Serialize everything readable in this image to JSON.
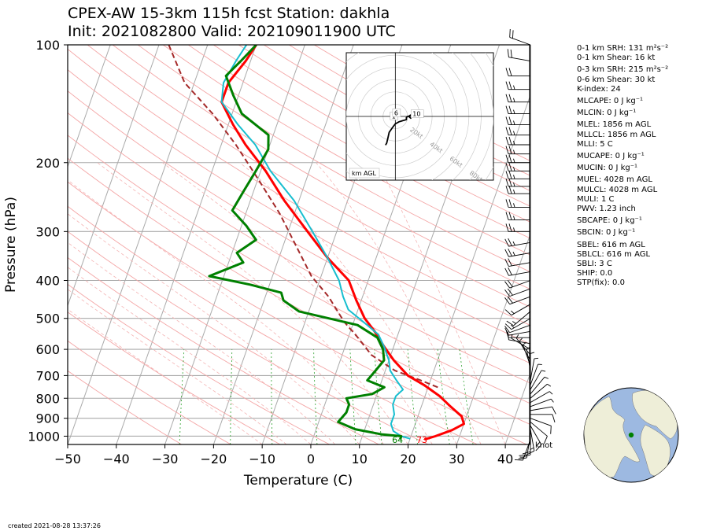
{
  "figure": {
    "title_line1": "CPEX-AW 15-3km  115h fcst  Station: dakhla",
    "title_line2": "Init: 2021082800  Valid: 2021090119​00 UTC",
    "footer": "created 2021-08-28 13:37:26",
    "wind_unit": "knot",
    "hodograph_label": "km AGL",
    "hodograph_height_markers": [
      "1",
      "6",
      "10"
    ],
    "hodograph_ring_labels": [
      "20kt",
      "40kt",
      "60kt",
      "80kt"
    ],
    "surface_dewpoint_label": "64",
    "surface_temperature_label": "73"
  },
  "stats": [
    {
      "label": "0-1 km SRH: 131 m²s⁻²"
    },
    {
      "label": "0-1 km Shear: 16 kt"
    },
    {
      "label": "0-3 km SRH: 215 m²s⁻²"
    },
    {
      "label": "0-6 km Shear: 30 kt"
    },
    {
      "label": "K-index: 24"
    },
    {
      "label": "MLCAPE: 0 J kg⁻¹"
    },
    {
      "label": "MLCIN: 0 J kg⁻¹"
    },
    {
      "label": "MLEL: 1856 m AGL"
    },
    {
      "label": "MLLCL: 1856 m AGL"
    },
    {
      "label": "MLLI: 5 C"
    },
    {
      "label": "MUCAPE: 0 J kg⁻¹"
    },
    {
      "label": "MUCIN: 0 J kg⁻¹"
    },
    {
      "label": "MUEL: 4028 m AGL"
    },
    {
      "label": "MULCL: 4028 m AGL"
    },
    {
      "label": "MULI: 1 C"
    },
    {
      "label": "PWV: 1.23 inch"
    },
    {
      "label": "SBCAPE: 0 J kg⁻¹"
    },
    {
      "label": "SBCIN: 0 J kg⁻¹"
    },
    {
      "label": "SBEL: 616 m AGL"
    },
    {
      "label": "SBLCL: 616 m AGL"
    },
    {
      "label": "SBLI: 3 C"
    },
    {
      "label": "SHIP: 0.0"
    },
    {
      "label": "STP(fix): 0.0"
    }
  ],
  "colors": {
    "temperature": "#ff0000",
    "dewpoint": "#008000",
    "wetbulb": "#17becf",
    "parcel": "#a52a2a",
    "dry_adiabat": "#f4a6a6",
    "isotherm": "#aaaaaa",
    "mixing_ratio": "#2ca02c",
    "ocean": "#9db9e1",
    "land": "#eeeed8"
  },
  "chart_data": {
    "type": "line",
    "title": "CPEX-AW 15-3km  115h fcst  Station: dakhla",
    "xlabel": "Temperature (C)",
    "ylabel": "Pressure (hPa)",
    "xlim": [
      -50,
      45
    ],
    "ylim": [
      1050,
      100
    ],
    "y_scale": "log",
    "grid": true,
    "x_ticks": [
      -50,
      -40,
      -30,
      -20,
      -10,
      0,
      10,
      20,
      30,
      40
    ],
    "y_ticks": [
      100,
      200,
      300,
      400,
      500,
      600,
      700,
      800,
      900,
      1000
    ],
    "series": [
      {
        "key": "temperature",
        "points": [
          [
            23,
            1020
          ],
          [
            25,
            1000
          ],
          [
            28,
            965
          ],
          [
            30,
            930
          ],
          [
            29,
            890
          ],
          [
            26,
            840
          ],
          [
            23,
            790
          ],
          [
            19,
            740
          ],
          [
            15,
            700
          ],
          [
            11,
            640
          ],
          [
            8,
            590
          ],
          [
            5,
            540
          ],
          [
            2,
            500
          ],
          [
            -1,
            450
          ],
          [
            -4,
            400
          ],
          [
            -10,
            350
          ],
          [
            -16,
            300
          ],
          [
            -23,
            250
          ],
          [
            -29,
            210
          ],
          [
            -35,
            180
          ],
          [
            -39,
            160
          ],
          [
            -43,
            140
          ],
          [
            -43,
            125
          ],
          [
            -41,
            110
          ],
          [
            -40,
            100
          ]
        ]
      },
      {
        "key": "wetbulb",
        "points": [
          [
            20,
            1015
          ],
          [
            18,
            1000
          ],
          [
            16,
            970
          ],
          [
            15,
            930
          ],
          [
            15,
            880
          ],
          [
            14,
            830
          ],
          [
            14,
            790
          ],
          [
            15,
            760
          ],
          [
            13,
            720
          ],
          [
            11,
            680
          ],
          [
            10,
            640
          ],
          [
            8,
            590
          ],
          [
            6,
            550
          ],
          [
            3,
            520
          ],
          [
            -2,
            475
          ],
          [
            -4,
            440
          ],
          [
            -6,
            400
          ],
          [
            -10,
            350
          ],
          [
            -15,
            300
          ],
          [
            -21,
            250
          ],
          [
            -28,
            210
          ],
          [
            -33,
            180
          ],
          [
            -38,
            160
          ],
          [
            -43,
            140
          ],
          [
            -44,
            125
          ],
          [
            -43,
            110
          ],
          [
            -42,
            100
          ]
        ]
      },
      {
        "key": "dewpoint",
        "points": [
          [
            18,
            1020
          ],
          [
            18,
            1000
          ],
          [
            14,
            990
          ],
          [
            8,
            960
          ],
          [
            4,
            920
          ],
          [
            5,
            870
          ],
          [
            5,
            830
          ],
          [
            4,
            800
          ],
          [
            9,
            780
          ],
          [
            11,
            750
          ],
          [
            7,
            720
          ],
          [
            8,
            680
          ],
          [
            9,
            640
          ],
          [
            8,
            600
          ],
          [
            6,
            560
          ],
          [
            1,
            520
          ],
          [
            -12,
            480
          ],
          [
            -16,
            450
          ],
          [
            -17,
            430
          ],
          [
            -24,
            410
          ],
          [
            -33,
            390
          ],
          [
            -27,
            360
          ],
          [
            -29,
            340
          ],
          [
            -26,
            315
          ],
          [
            -29,
            290
          ],
          [
            -33,
            265
          ],
          [
            -32,
            235
          ],
          [
            -31,
            210
          ],
          [
            -30,
            185
          ],
          [
            -31,
            170
          ],
          [
            -38,
            150
          ],
          [
            -41,
            135
          ],
          [
            -44,
            120
          ],
          [
            -42,
            110
          ],
          [
            -40,
            100
          ]
        ]
      },
      {
        "key": "parcel",
        "points": [
          [
            22,
            750
          ],
          [
            18,
            720
          ],
          [
            12,
            680
          ],
          [
            6,
            620
          ],
          [
            2,
            560
          ],
          [
            -2,
            510
          ],
          [
            -7,
            440
          ],
          [
            -12,
            390
          ],
          [
            -17,
            330
          ],
          [
            -23,
            270
          ],
          [
            -30,
            220
          ],
          [
            -37,
            180
          ],
          [
            -44,
            150
          ],
          [
            -52,
            125
          ],
          [
            -58,
            100
          ]
        ]
      }
    ],
    "surface_labels": [
      {
        "text": "64",
        "x": 18
      },
      {
        "text": "73",
        "x": 23
      }
    ],
    "wind_barbs_pressure": [
      1020,
      1000,
      980,
      960,
      940,
      920,
      900,
      880,
      860,
      840,
      820,
      800,
      780,
      760,
      740,
      720,
      700,
      680,
      660,
      640,
      620,
      600,
      580,
      560,
      540,
      520,
      500,
      480,
      460,
      440,
      420,
      400,
      380,
      360,
      340,
      320,
      300,
      280,
      260,
      240,
      230,
      220,
      210,
      200,
      190,
      180,
      170,
      160,
      150,
      140,
      130,
      120,
      110,
      100
    ],
    "wind_barbs_direction": [
      200,
      190,
      180,
      170,
      150,
      130,
      110,
      90,
      80,
      70,
      60,
      50,
      40,
      30,
      20,
      10,
      360,
      350,
      340,
      330,
      320,
      300,
      280,
      270,
      260,
      250,
      240,
      230,
      240,
      250,
      250,
      250,
      260,
      260,
      260,
      260,
      270,
      270,
      270,
      270,
      270,
      270,
      270,
      270,
      270,
      270,
      270,
      270,
      270,
      270,
      270,
      270,
      280,
      290
    ],
    "wind_barbs_speed": [
      15,
      20,
      20,
      15,
      15,
      10,
      10,
      10,
      10,
      5,
      5,
      5,
      5,
      5,
      5,
      5,
      5,
      5,
      5,
      5,
      5,
      5,
      10,
      10,
      10,
      10,
      15,
      15,
      15,
      20,
      20,
      20,
      20,
      20,
      25,
      25,
      25,
      25,
      25,
      25,
      25,
      25,
      25,
      25,
      25,
      25,
      25,
      25,
      25,
      25,
      25,
      20,
      20,
      20
    ],
    "hodograph": {
      "xlim_kt": [
        -40,
        80
      ],
      "ylim_kt": [
        -60,
        60
      ],
      "rings_kt": [
        10,
        20,
        30,
        40,
        50,
        60,
        70,
        80,
        90,
        100
      ],
      "u": [
        -8,
        -7,
        -6,
        -5,
        -2,
        0,
        3,
        6,
        9,
        9,
        10,
        13,
        14,
        15,
        14,
        12,
        11,
        12,
        13
      ],
      "v": [
        -27,
        -25,
        -20,
        -15,
        -10,
        -7,
        -5,
        -4,
        -3,
        -1,
        0,
        1,
        2,
        3,
        2,
        1,
        0,
        -1,
        -2
      ]
    },
    "station_marker_map": {
      "label": "dakhla"
    }
  }
}
